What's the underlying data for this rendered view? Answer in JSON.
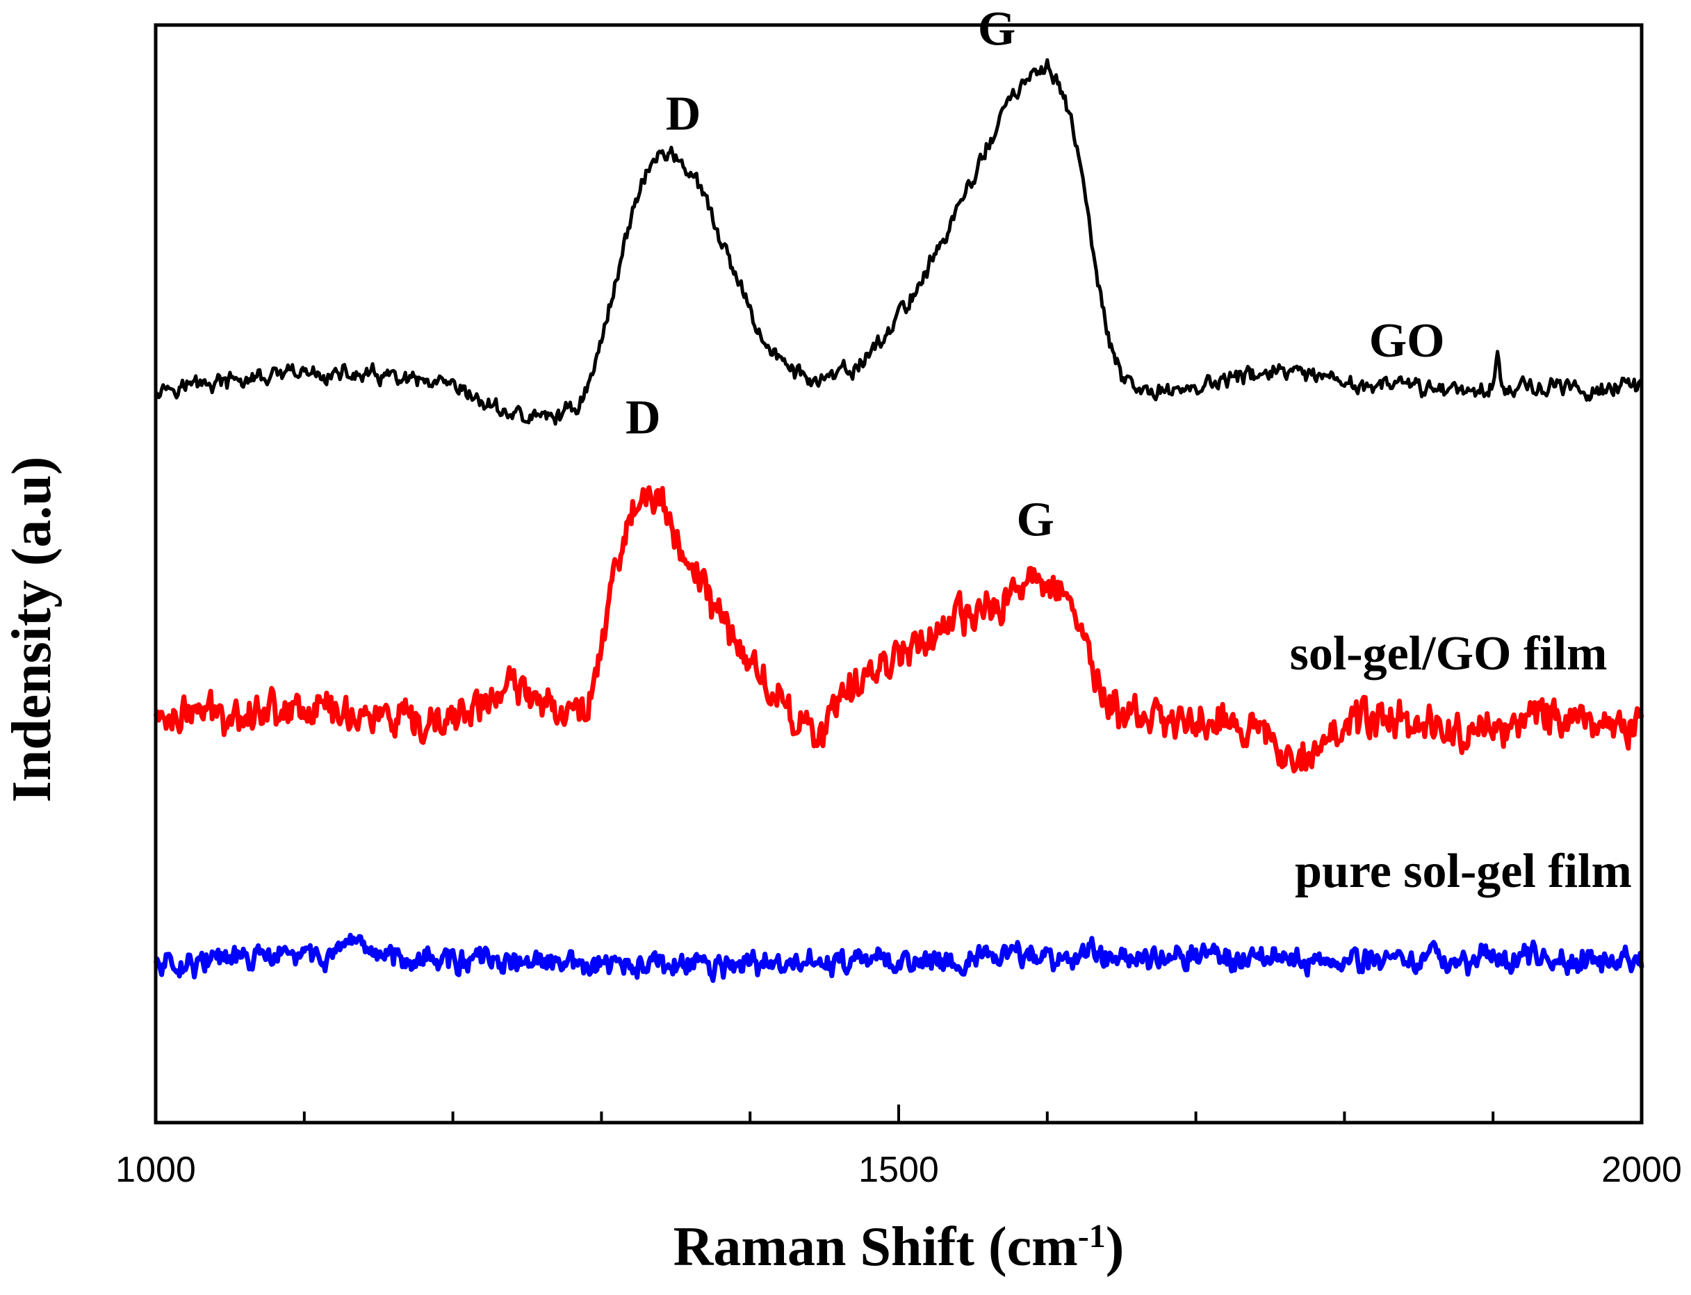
{
  "chart_data": {
    "type": "line",
    "title": "",
    "xlabel": "Raman Shift (cm",
    "xlabel_sup": "-1",
    "xlabel_suffix": ")",
    "ylabel": "Indensity (a.u)",
    "xlim": [
      1000,
      2000
    ],
    "ylim": [
      0,
      100
    ],
    "x_tick_labels": [
      "1000",
      "1500",
      "2000"
    ],
    "x_ticks": [
      1000,
      1100,
      1200,
      1300,
      1400,
      1500,
      1600,
      1700,
      1800,
      1900,
      2000
    ],
    "y_ticks_visible": false,
    "grid": false,
    "legend": "none",
    "series": [
      {
        "name": "GO",
        "color": "#000000",
        "noise": 0.8,
        "points": [
          [
            1000,
            67
          ],
          [
            1050,
            67.5
          ],
          [
            1100,
            68.2
          ],
          [
            1150,
            68
          ],
          [
            1200,
            66.8
          ],
          [
            1230,
            65
          ],
          [
            1250,
            64.2
          ],
          [
            1270,
            64.4
          ],
          [
            1285,
            65.5
          ],
          [
            1295,
            68.5
          ],
          [
            1305,
            74
          ],
          [
            1315,
            80
          ],
          [
            1325,
            85
          ],
          [
            1335,
            87.8
          ],
          [
            1345,
            88.3
          ],
          [
            1355,
            87.5
          ],
          [
            1370,
            84
          ],
          [
            1390,
            77
          ],
          [
            1410,
            71
          ],
          [
            1430,
            68.3
          ],
          [
            1450,
            67.5
          ],
          [
            1470,
            68.6
          ],
          [
            1490,
            71.5
          ],
          [
            1510,
            75.5
          ],
          [
            1530,
            80.5
          ],
          [
            1550,
            86
          ],
          [
            1570,
            92
          ],
          [
            1585,
            95
          ],
          [
            1600,
            95.8
          ],
          [
            1610,
            94.5
          ],
          [
            1620,
            89
          ],
          [
            1630,
            80
          ],
          [
            1640,
            72
          ],
          [
            1650,
            67.8
          ],
          [
            1660,
            66.5
          ],
          [
            1700,
            67
          ],
          [
            1750,
            68.5
          ],
          [
            1800,
            67.3
          ],
          [
            1850,
            67
          ],
          [
            1895,
            66.8
          ],
          [
            1900,
            67.3
          ],
          [
            1903,
            69.5
          ],
          [
            1906,
            67.2
          ],
          [
            1950,
            66.8
          ],
          [
            2000,
            67
          ]
        ]
      },
      {
        "name": "sol-gel/GO film",
        "color": "#ff0000",
        "noise": 1.7,
        "points": [
          [
            1000,
            37
          ],
          [
            1050,
            37.5
          ],
          [
            1100,
            38
          ],
          [
            1150,
            37
          ],
          [
            1180,
            35.5
          ],
          [
            1210,
            37.5
          ],
          [
            1240,
            39.5
          ],
          [
            1270,
            38.5
          ],
          [
            1280,
            36.8
          ],
          [
            1290,
            38
          ],
          [
            1300,
            44
          ],
          [
            1310,
            51
          ],
          [
            1320,
            55.5
          ],
          [
            1330,
            57.2
          ],
          [
            1340,
            56
          ],
          [
            1360,
            51
          ],
          [
            1380,
            46
          ],
          [
            1400,
            42
          ],
          [
            1420,
            38.5
          ],
          [
            1440,
            36
          ],
          [
            1450,
            35.2
          ],
          [
            1460,
            38
          ],
          [
            1480,
            41
          ],
          [
            1500,
            43
          ],
          [
            1520,
            44.5
          ],
          [
            1550,
            46
          ],
          [
            1570,
            47.5
          ],
          [
            1585,
            49
          ],
          [
            1600,
            49.8
          ],
          [
            1610,
            49
          ],
          [
            1620,
            46
          ],
          [
            1630,
            41.5
          ],
          [
            1640,
            38
          ],
          [
            1660,
            36.8
          ],
          [
            1700,
            36.5
          ],
          [
            1720,
            37.2
          ],
          [
            1740,
            35.5
          ],
          [
            1760,
            33.8
          ],
          [
            1780,
            34.5
          ],
          [
            1800,
            36
          ],
          [
            1830,
            37
          ],
          [
            1860,
            36.2
          ],
          [
            1880,
            35.5
          ],
          [
            1920,
            36.5
          ],
          [
            1950,
            37.5
          ],
          [
            1980,
            36.3
          ],
          [
            2000,
            36
          ]
        ]
      },
      {
        "name": "pure sol-gel film",
        "color": "#0000ff",
        "noise": 1.1,
        "points": [
          [
            1000,
            14.5
          ],
          [
            1100,
            15.2
          ],
          [
            1150,
            15.5
          ],
          [
            1200,
            14.8
          ],
          [
            1300,
            14.2
          ],
          [
            1400,
            14.3
          ],
          [
            1500,
            14.7
          ],
          [
            1600,
            15.2
          ],
          [
            1700,
            15.3
          ],
          [
            1800,
            14.8
          ],
          [
            1900,
            15
          ],
          [
            2000,
            14.8
          ]
        ]
      }
    ],
    "annotations": [
      {
        "text": "D",
        "x": 1355,
        "y": 91.5
      },
      {
        "text": "G",
        "x": 1566,
        "y": 99.2
      },
      {
        "text": "GO",
        "x": 1842,
        "y": 70.8
      },
      {
        "text": "D",
        "x": 1328,
        "y": 63.8
      },
      {
        "text": "G",
        "x": 1592,
        "y": 54.5
      },
      {
        "text": "sol-gel/GO film",
        "x": 1870,
        "y": 42.3
      },
      {
        "text": "pure sol-gel film",
        "x": 1880,
        "y": 22.5
      }
    ]
  }
}
